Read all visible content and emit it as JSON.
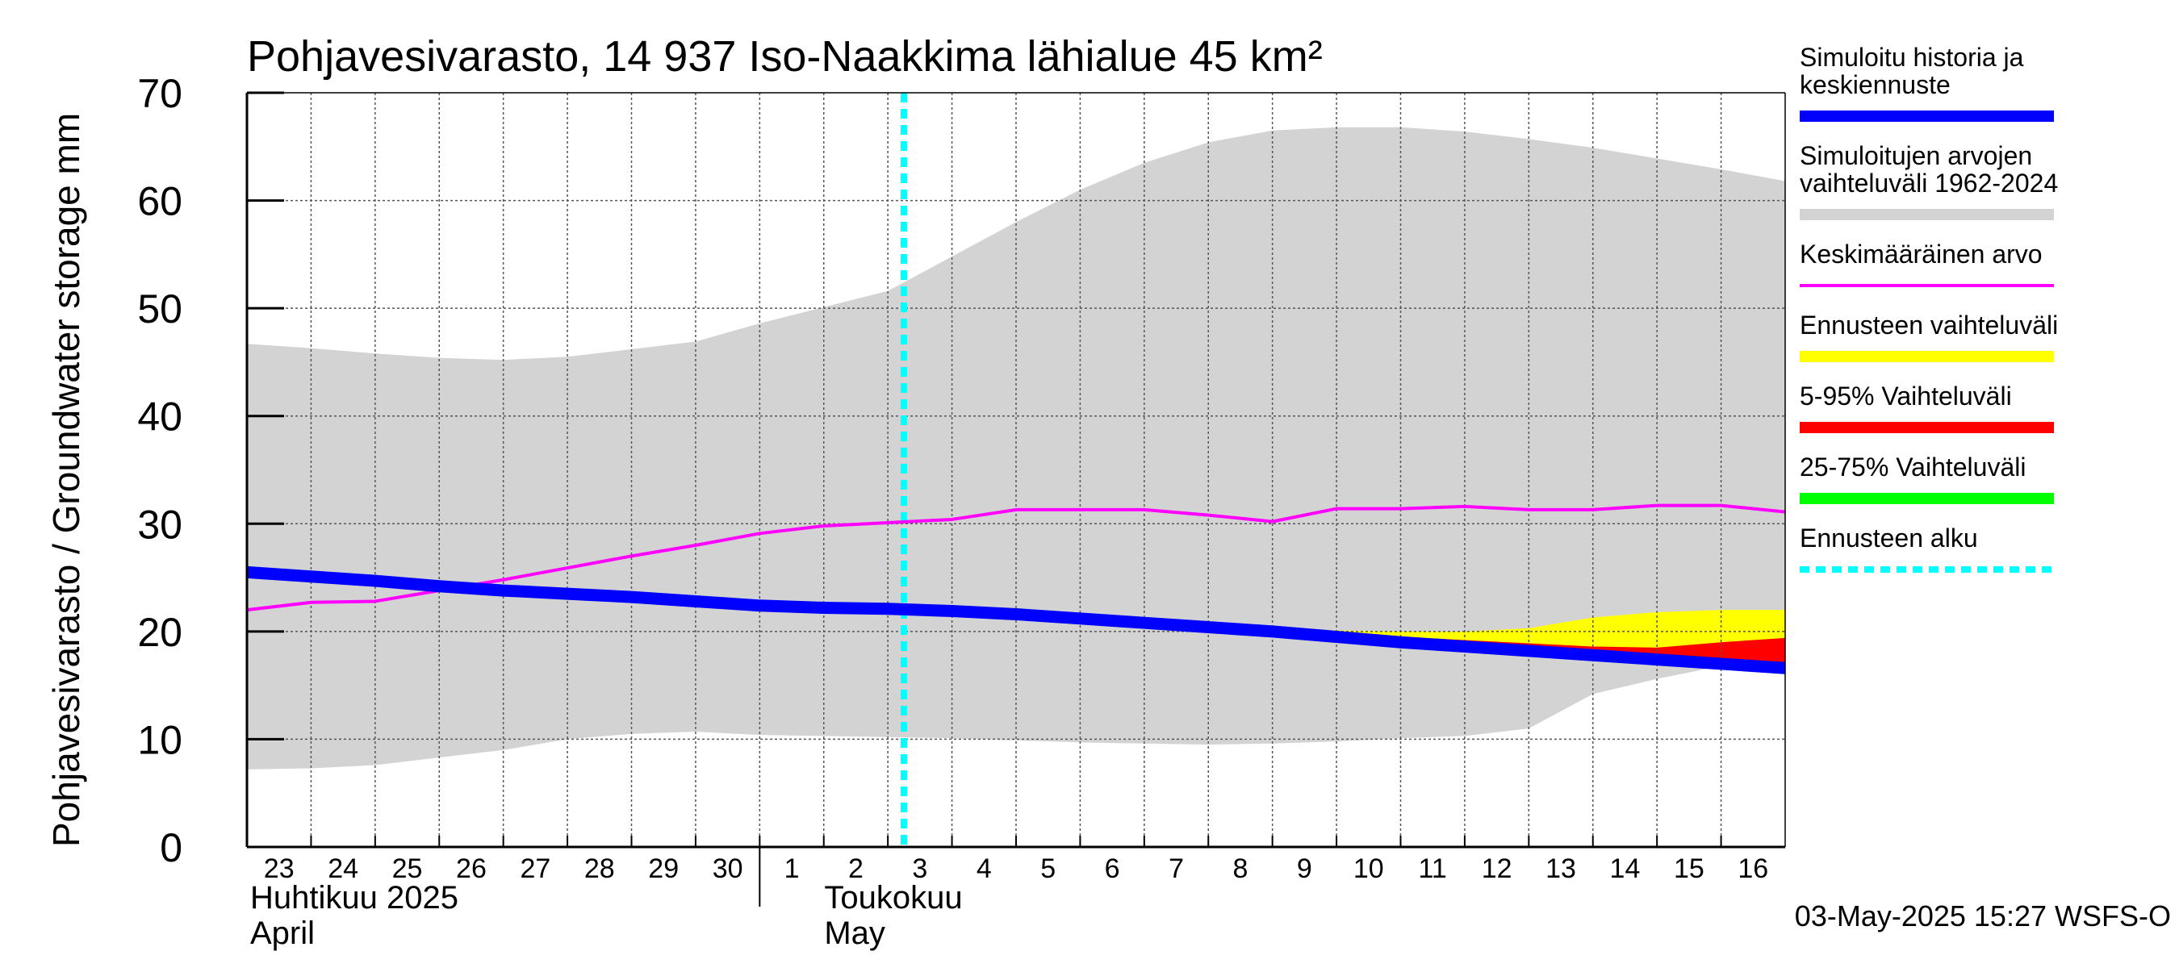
{
  "chart_data": {
    "type": "area",
    "title": "Pohjavesivarasto, 14 937 Iso-Naakkima lähialue 45 km²",
    "ylabel": "Pohjavesivarasto / Groundwater storage   mm",
    "ylim": [
      0,
      70
    ],
    "yticks": [
      "0",
      "10",
      "20",
      "30",
      "40",
      "50",
      "60",
      "70"
    ],
    "grid": true,
    "x_tick_labels": [
      "23",
      "24",
      "25",
      "26",
      "27",
      "28",
      "29",
      "30",
      "1",
      "2",
      "3",
      "4",
      "5",
      "6",
      "7",
      "8",
      "9",
      "10",
      "11",
      "12",
      "13",
      "14",
      "15",
      "16"
    ],
    "month_labels": [
      {
        "fi": "Huhtikuu  2025",
        "en": "April"
      },
      {
        "fi": "Toukokuu",
        "en": "May"
      }
    ],
    "x_range_days": [
      0,
      24
    ],
    "forecast_start_day": 10.25,
    "timestamp": "03-May-2025 15:27 WSFS-O",
    "legend_position": "right",
    "legend": [
      {
        "label": "Simuloitu historia ja\nkeskiennuste",
        "color": "#0000ff",
        "style": "thick"
      },
      {
        "label": "Simuloitujen arvojen\nvaihteluväli 1962-2024",
        "color": "#d3d3d3",
        "style": "thick"
      },
      {
        "label": "Keskimääräinen arvo",
        "color": "#ff00ff",
        "style": "thin"
      },
      {
        "label": "Ennusteen vaihteluväli",
        "color": "#ffff00",
        "style": "thick"
      },
      {
        "label": "5-95% Vaihteluväli",
        "color": "#ff0000",
        "style": "thick"
      },
      {
        "label": "25-75% Vaihteluväli",
        "color": "#00ff00",
        "style": "thick"
      },
      {
        "label": "Ennusteen alku",
        "color": "#00ffff",
        "style": "dashed"
      }
    ],
    "series": [
      {
        "name": "Simuloitujen arvojen vaihteluväli 1962-2024",
        "color": "#d3d3d3",
        "kind": "band",
        "x": [
          0,
          1,
          2,
          3,
          4,
          5,
          6,
          7,
          8,
          9,
          10,
          11,
          12,
          13,
          14,
          15,
          16,
          17,
          18,
          19,
          20,
          21,
          22,
          23,
          24
        ],
        "low": [
          7.2,
          7.3,
          7.6,
          8.3,
          9.0,
          10.0,
          10.5,
          10.7,
          10.4,
          10.3,
          10.2,
          10.1,
          9.9,
          9.7,
          9.6,
          9.5,
          9.6,
          9.8,
          10.1,
          10.3,
          11.0,
          14.2,
          15.6,
          16.8,
          17.5
        ],
        "high": [
          46.7,
          46.3,
          45.8,
          45.4,
          45.2,
          45.5,
          46.2,
          46.9,
          48.6,
          50.1,
          51.6,
          54.8,
          58.0,
          61.0,
          63.5,
          65.4,
          66.5,
          66.8,
          66.8,
          66.4,
          65.7,
          64.9,
          63.9,
          62.9,
          61.8
        ]
      },
      {
        "name": "Ennusteen vaihteluväli",
        "color": "#ffff00",
        "kind": "band",
        "x": [
          10.25,
          11,
          12,
          13,
          14,
          15,
          16,
          17,
          18,
          19,
          20,
          21,
          22,
          23,
          24
        ],
        "low": [
          22.1,
          22.0,
          21.6,
          21.2,
          20.8,
          20.4,
          20.0,
          19.5,
          19.0,
          18.5,
          18.0,
          17.6,
          17.2,
          16.8,
          16.4
        ],
        "high": [
          22.1,
          22.0,
          21.7,
          21.3,
          20.9,
          20.6,
          20.3,
          20.1,
          20.0,
          20.0,
          20.3,
          21.3,
          21.8,
          22.0,
          22.0
        ]
      },
      {
        "name": "5-95% Vaihteluväli",
        "color": "#ff0000",
        "kind": "band",
        "x": [
          10.25,
          11,
          12,
          13,
          14,
          15,
          16,
          17,
          18,
          19,
          20,
          21,
          22,
          23,
          24
        ],
        "low": [
          22.1,
          22.0,
          21.6,
          21.2,
          20.8,
          20.4,
          20.0,
          19.5,
          19.0,
          18.5,
          18.0,
          17.6,
          17.2,
          16.8,
          16.4
        ],
        "high": [
          22.1,
          22.0,
          21.7,
          21.3,
          20.9,
          20.6,
          20.3,
          19.9,
          19.5,
          19.2,
          18.9,
          18.6,
          18.5,
          19.0,
          19.4
        ]
      },
      {
        "name": "25-75% Vaihteluväli",
        "color": "#00ff00",
        "kind": "band",
        "x": [
          10.25,
          11,
          12,
          13,
          14,
          15,
          16,
          17,
          18,
          19,
          20,
          21,
          22,
          23,
          24
        ],
        "low": [
          22.1,
          22.0,
          21.6,
          21.2,
          20.8,
          20.4,
          20.0,
          19.5,
          19.0,
          18.6,
          18.1,
          17.7,
          17.3,
          17.0,
          16.8
        ],
        "high": [
          22.1,
          22.0,
          21.6,
          21.2,
          20.8,
          20.4,
          20.0,
          19.6,
          19.1,
          18.7,
          18.3,
          17.9,
          17.5,
          17.2,
          17.0
        ]
      },
      {
        "name": "Keskimääräinen arvo",
        "color": "#ff00ff",
        "kind": "line",
        "width": 4,
        "x": [
          0,
          1,
          2,
          3,
          4,
          5,
          6,
          7,
          8,
          9,
          10,
          11,
          12,
          13,
          14,
          15,
          16,
          17,
          18,
          19,
          20,
          21,
          22,
          23,
          24
        ],
        "y": [
          22.0,
          22.7,
          22.8,
          23.8,
          24.8,
          25.9,
          27.0,
          28.0,
          29.1,
          29.8,
          30.1,
          30.4,
          31.3,
          31.3,
          31.3,
          30.8,
          30.2,
          31.4,
          31.4,
          31.6,
          31.3,
          31.3,
          31.7,
          31.7,
          31.1
        ]
      },
      {
        "name": "Simuloitu historia ja keskiennuste",
        "color": "#0000ff",
        "kind": "line",
        "width": 15,
        "x": [
          0,
          1,
          2,
          3,
          4,
          5,
          6,
          7,
          8,
          9,
          10,
          11,
          12,
          13,
          14,
          15,
          16,
          17,
          18,
          19,
          20,
          21,
          22,
          23,
          24
        ],
        "y": [
          25.5,
          25.1,
          24.7,
          24.2,
          23.8,
          23.5,
          23.2,
          22.8,
          22.4,
          22.2,
          22.1,
          21.9,
          21.6,
          21.2,
          20.8,
          20.4,
          20.0,
          19.5,
          19.0,
          18.6,
          18.2,
          17.8,
          17.4,
          17.0,
          16.6
        ]
      }
    ]
  }
}
